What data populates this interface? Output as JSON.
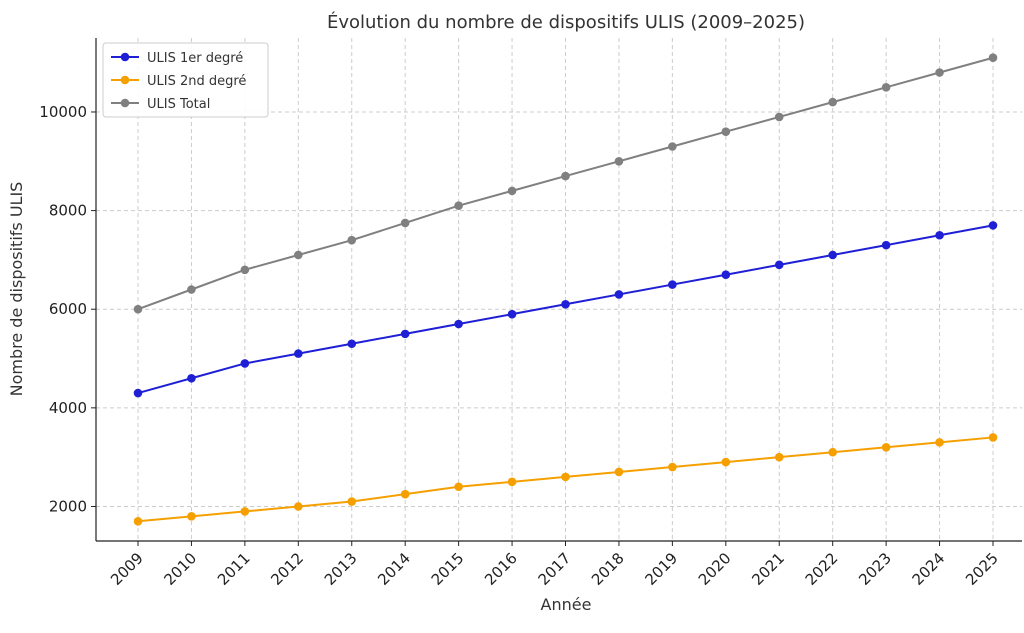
{
  "chart_data": {
    "type": "line",
    "title": "Évolution du nombre de dispositifs ULIS (2009–2025)",
    "xlabel": "Année",
    "ylabel": "Nombre de dispositifs ULIS",
    "x": [
      "2009",
      "2010",
      "2011",
      "2012",
      "2013",
      "2014",
      "2015",
      "2016",
      "2017",
      "2018",
      "2019",
      "2020",
      "2021",
      "2022",
      "2023",
      "2024",
      "2025"
    ],
    "ylim": [
      1300,
      11500
    ],
    "yticks": [
      2000,
      4000,
      6000,
      8000,
      10000
    ],
    "grid": true,
    "legend_position": "top-left",
    "series": [
      {
        "name": "ULIS 1er degré",
        "color": "#1f1fd6",
        "values": [
          4300,
          4600,
          4900,
          5100,
          5300,
          5500,
          5700,
          5900,
          6100,
          6300,
          6500,
          6700,
          6900,
          7100,
          7300,
          7500,
          7700
        ]
      },
      {
        "name": "ULIS 2nd degré",
        "color": "#f5a000",
        "values": [
          1700,
          1800,
          1900,
          2000,
          2100,
          2250,
          2400,
          2500,
          2600,
          2700,
          2800,
          2900,
          3000,
          3100,
          3200,
          3300,
          3400
        ]
      },
      {
        "name": "ULIS Total",
        "color": "#808080",
        "values": [
          6000,
          6400,
          6800,
          7100,
          7400,
          7750,
          8100,
          8400,
          8700,
          9000,
          9300,
          9600,
          9900,
          10200,
          10500,
          10800,
          11100
        ]
      }
    ]
  }
}
